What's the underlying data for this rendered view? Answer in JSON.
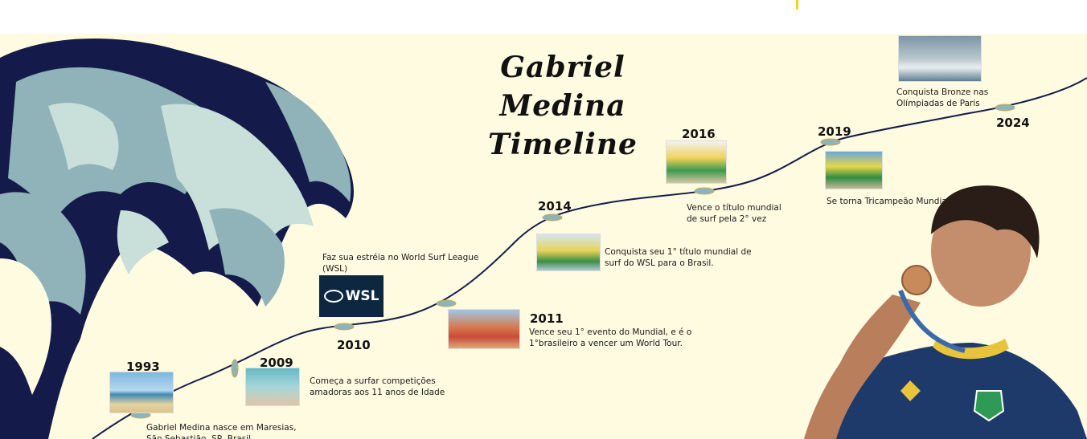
{
  "title": {
    "line1": "Gabriel Medina",
    "line2": "Timeline"
  },
  "events": [
    {
      "year": "1993",
      "text": "Gabriel Medina nasce em Maresias,\nSão Sebastião, SP, Brasil"
    },
    {
      "year": "2009",
      "text": "Começa a  surfar competições\namadoras  aos 11 anos de Idade"
    },
    {
      "year": "2010",
      "text": "Faz sua estréia no World Surf League\n(WSL)"
    },
    {
      "year": "2011",
      "text": "Vence seu 1° evento do Mundial, e é o\n1°brasileiro a vencer um World Tour."
    },
    {
      "year": "2014",
      "text": "Conquista seu 1° título mundial de\nsurf do WSL para o Brasil."
    },
    {
      "year": "2016",
      "text": "Vence o título mundial\nde surf pela 2° vez"
    },
    {
      "year": "2019",
      "text": "Se torna Tricampeão Mundial."
    },
    {
      "year": "2024",
      "text": "Conquista Bronze nas\nOlímpiadas de Paris"
    }
  ],
  "wsl_logo_text": "WSL",
  "colors": {
    "background": "#fefbe0",
    "wave_dark": "#141a4a",
    "wave_light": "#8fb3b8",
    "line": "#141a4a"
  }
}
